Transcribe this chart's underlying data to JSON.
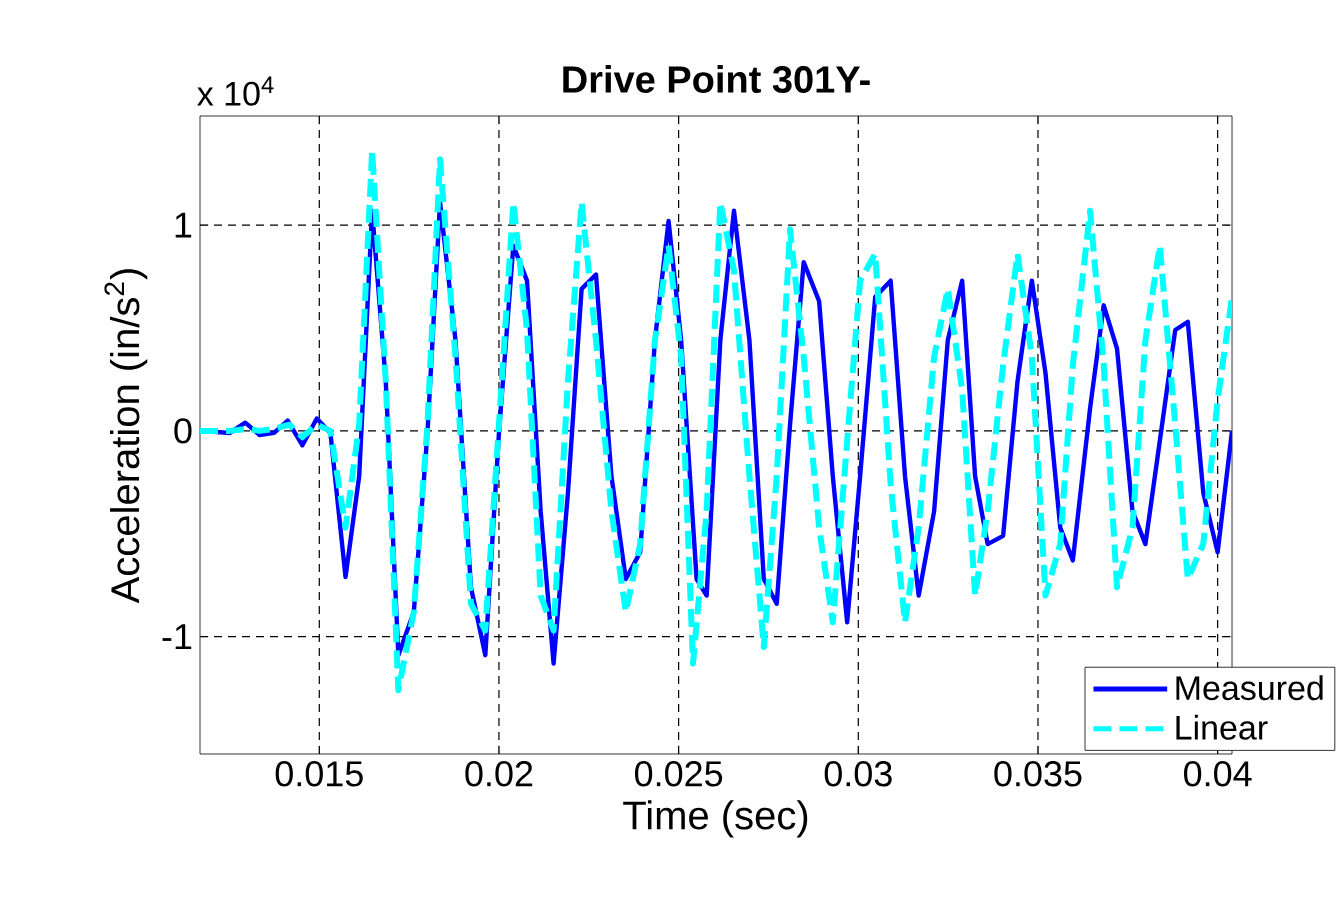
{
  "chart_data": {
    "type": "line",
    "title": "Drive Point 301Y-",
    "xlabel": "Time (sec)",
    "ylabel": "Acceleration (in/s$^{2}$)",
    "annotations": [
      "x 10$^{4}$"
    ],
    "xlim": [
      0.01168,
      0.0404
    ],
    "ylim": [
      -1.57,
      1.53
    ],
    "xticks": [
      0.015,
      0.02,
      0.025,
      0.03,
      0.035,
      0.04
    ],
    "yticks": [
      -1,
      0,
      1
    ],
    "grid": true,
    "legend": "bottom right",
    "series": [
      {
        "name": "Measured",
        "color": "#0000ff",
        "line_style": "solid",
        "x": [
          0.01168,
          0.01251,
          0.01294,
          0.01334,
          0.01374,
          0.01412,
          0.01453,
          0.01493,
          0.01531,
          0.01573,
          0.01611,
          0.01647,
          0.01685,
          0.0172,
          0.01763,
          0.01801,
          0.01836,
          0.01879,
          0.01922,
          0.01962,
          0.02,
          0.0204,
          0.02078,
          0.02116,
          0.02152,
          0.02192,
          0.0223,
          0.0227,
          0.02313,
          0.02353,
          0.02393,
          0.02434,
          0.02472,
          0.02507,
          0.0255,
          0.02578,
          0.02616,
          0.02654,
          0.02697,
          0.02737,
          0.02773,
          0.0281,
          0.02848,
          0.02891,
          0.02929,
          0.02969,
          0.03005,
          0.03047,
          0.0309,
          0.0313,
          0.03168,
          0.03211,
          0.03249,
          0.03289,
          0.03325,
          0.0336,
          0.03403,
          0.03443,
          0.03483,
          0.03521,
          0.03562,
          0.03597,
          0.03645,
          0.03683,
          0.0372,
          0.03763,
          0.03799,
          0.03839,
          0.03882,
          0.03917,
          0.0396,
          0.04,
          0.0404
        ],
        "values": [
          0,
          -0.01,
          0.04,
          -0.02,
          -0.01,
          0.05,
          -0.07,
          0.06,
          -0.01,
          -0.71,
          -0.22,
          1.07,
          0.24,
          -1.09,
          -0.88,
          -0.01,
          1.11,
          0.44,
          -0.76,
          -1.09,
          -0.01,
          0.9,
          0.73,
          -0.39,
          -1.13,
          -0.3,
          0.69,
          0.76,
          -0.22,
          -0.72,
          -0.59,
          0.44,
          1.02,
          0.44,
          -0.72,
          -0.8,
          0.44,
          1.07,
          0.44,
          -0.72,
          -0.84,
          0.03,
          0.82,
          0.63,
          -0.22,
          -0.93,
          -0.22,
          0.65,
          0.73,
          -0.22,
          -0.8,
          -0.39,
          0.44,
          0.73,
          -0.22,
          -0.55,
          -0.51,
          0.24,
          0.73,
          0.28,
          -0.47,
          -0.63,
          0.11,
          0.61,
          0.4,
          -0.39,
          -0.55,
          -0.05,
          0.49,
          0.53,
          -0.3,
          -0.59,
          0
        ]
      },
      {
        "name": "Linear",
        "color": "#00ffff",
        "line_style": "dashed",
        "x": [
          0.01168,
          0.01251,
          0.01299,
          0.01334,
          0.01374,
          0.01417,
          0.01453,
          0.01493,
          0.01531,
          0.01573,
          0.01611,
          0.01647,
          0.01685,
          0.0172,
          0.01763,
          0.01801,
          0.01836,
          0.01879,
          0.01922,
          0.01962,
          0.02,
          0.0204,
          0.02078,
          0.02116,
          0.02152,
          0.02192,
          0.0223,
          0.0227,
          0.02313,
          0.02353,
          0.02393,
          0.02434,
          0.02472,
          0.02507,
          0.0254,
          0.02578,
          0.02616,
          0.02654,
          0.02697,
          0.02737,
          0.02773,
          0.0281,
          0.02848,
          0.02891,
          0.02929,
          0.02969,
          0.03005,
          0.03047,
          0.0309,
          0.0313,
          0.03168,
          0.03211,
          0.03249,
          0.03289,
          0.03325,
          0.0336,
          0.03403,
          0.03443,
          0.03483,
          0.03521,
          0.03562,
          0.03597,
          0.03645,
          0.03683,
          0.0372,
          0.03763,
          0.03799,
          0.03839,
          0.03882,
          0.03917,
          0.0396,
          0.04,
          0.0404
        ],
        "values": [
          0,
          0,
          0.01,
          0,
          0.01,
          0.03,
          -0.03,
          0.03,
          0,
          -0.47,
          0.03,
          1.36,
          0.24,
          -1.26,
          -0.88,
          0.03,
          1.32,
          0.36,
          -0.84,
          -0.97,
          0.03,
          1.11,
          0.49,
          -0.8,
          -0.97,
          0.24,
          1.11,
          0.44,
          -0.39,
          -0.88,
          -0.55,
          0.44,
          0.9,
          0.36,
          -1.13,
          -0.39,
          1.11,
          0.78,
          -0.22,
          -1.05,
          -0.22,
          0.98,
          0.36,
          -0.47,
          -0.93,
          -0.05,
          0.73,
          0.86,
          -0.26,
          -0.93,
          -0.47,
          0.36,
          0.69,
          0.2,
          -0.8,
          -0.39,
          0.32,
          0.86,
          0.36,
          -0.8,
          -0.55,
          0.32,
          1.07,
          0.32,
          -0.76,
          -0.47,
          0.44,
          0.9,
          0.03,
          -0.72,
          -0.55,
          0.15,
          0.65
        ]
      }
    ]
  }
}
